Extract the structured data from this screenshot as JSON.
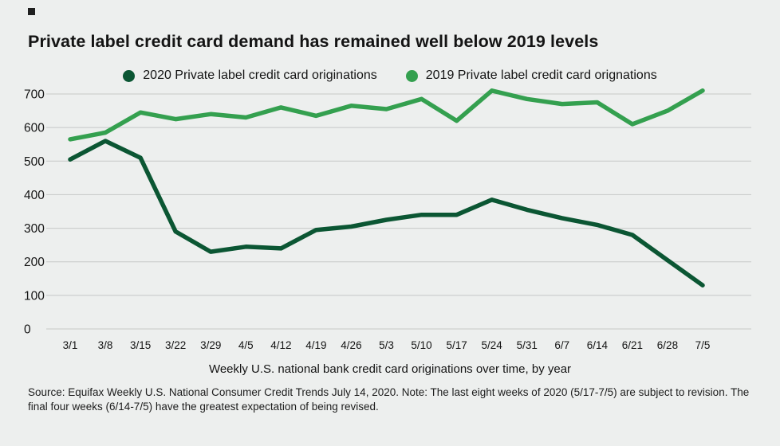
{
  "page": {
    "title": "Private label credit card demand has remained well below 2019 levels",
    "source_note": "Source: Equifax Weekly U.S. National Consumer Credit Trends July 14, 2020. Note: The last eight weeks of 2020 (5/17-7/5) are subject to revision. The final four weeks (6/14-7/5) have the greatest expectation of being revised."
  },
  "chart_data": {
    "type": "line",
    "title": "Private label credit card demand has remained well below 2019 levels",
    "xlabel": "Weekly U.S. national bank credit card originations over time, by year",
    "ylabel": "",
    "ylim": [
      0,
      740
    ],
    "yticks": [
      0,
      100,
      200,
      300,
      400,
      500,
      600,
      700
    ],
    "grid": true,
    "legend_position": "top",
    "categories": [
      "3/1",
      "3/8",
      "3/15",
      "3/22",
      "3/29",
      "4/5",
      "4/12",
      "4/19",
      "4/26",
      "5/3",
      "5/10",
      "5/17",
      "5/24",
      "5/31",
      "6/7",
      "6/14",
      "6/21",
      "6/28",
      "7/5"
    ],
    "series": [
      {
        "name": "2020 Private label credit card originations",
        "color": "#0b5633",
        "values": [
          505,
          560,
          510,
          290,
          230,
          245,
          240,
          295,
          305,
          325,
          340,
          340,
          385,
          355,
          330,
          310,
          280,
          205,
          130
        ]
      },
      {
        "name": "2019 Private label credit card orignations",
        "color": "#34a04f",
        "values": [
          565,
          585,
          645,
          625,
          640,
          630,
          660,
          635,
          665,
          655,
          685,
          620,
          710,
          685,
          670,
          675,
          610,
          650,
          710
        ]
      }
    ]
  }
}
